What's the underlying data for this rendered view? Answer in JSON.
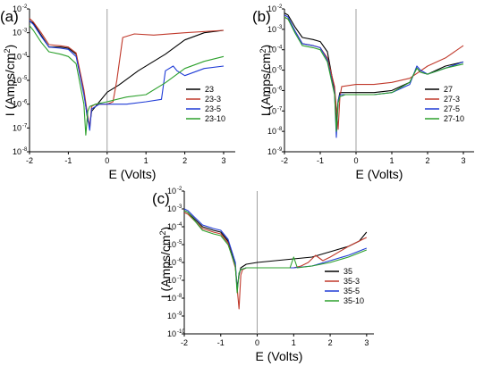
{
  "chart_data": [
    {
      "type": "line",
      "panel_label": "(a)",
      "xlabel": "E (Volts)",
      "ylabel": "I (Amps/cm²)",
      "ylabel_main": "I (Amps/cm",
      "ylabel_sup": "2",
      "ylabel_close": ")",
      "log_y": true,
      "xlim": [
        -2,
        3.3
      ],
      "ylim_exp": [
        -8,
        -2
      ],
      "x_ticks": [
        "-2",
        "-1",
        "0",
        "1",
        "2",
        "3"
      ],
      "y_tick_exps": [
        "-8",
        "-7",
        "-6",
        "-5",
        "-4",
        "-3",
        "-2"
      ],
      "y_tick_base": "10",
      "series": [
        {
          "name": "23",
          "color": "#000000",
          "x": [
            -2,
            -1.9,
            -1.7,
            -1.5,
            -1.2,
            -1.0,
            -0.8,
            -0.6,
            -0.5,
            -0.45,
            -0.4,
            -0.3,
            -0.2,
            0,
            0.3,
            0.8,
            1.5,
            2.0,
            2.5,
            3.0
          ],
          "y": [
            -2.5,
            -2.6,
            -3.1,
            -3.6,
            -3.6,
            -3.65,
            -3.9,
            -5.5,
            -6.7,
            -6.9,
            -6.3,
            -6.1,
            -5.9,
            -5.5,
            -5.2,
            -4.6,
            -3.9,
            -3.3,
            -3.0,
            -2.9
          ]
        },
        {
          "name": "23-3",
          "color": "#c0392b",
          "x": [
            -2,
            -1.9,
            -1.7,
            -1.5,
            -1.2,
            -1.0,
            -0.8,
            -0.6,
            -0.5,
            -0.45,
            -0.4,
            -0.3,
            -0.2,
            0,
            0.15,
            0.25,
            0.4,
            0.7,
            1.2,
            2.0,
            3.0
          ],
          "y": [
            -2.4,
            -2.55,
            -3.0,
            -3.5,
            -3.55,
            -3.6,
            -3.85,
            -5.4,
            -6.5,
            -7.0,
            -6.1,
            -6.0,
            -6.0,
            -6.0,
            -5.9,
            -5.0,
            -3.2,
            -3.05,
            -3.1,
            -3.0,
            -2.9
          ]
        },
        {
          "name": "23-5",
          "color": "#1f3bd6",
          "x": [
            -2,
            -1.9,
            -1.7,
            -1.5,
            -1.2,
            -1.0,
            -0.8,
            -0.6,
            -0.5,
            -0.45,
            -0.4,
            -0.3,
            -0.2,
            0,
            0.5,
            1.0,
            1.4,
            1.5,
            1.7,
            1.8,
            2.0,
            2.5,
            3.0
          ],
          "y": [
            -2.5,
            -2.65,
            -3.15,
            -3.6,
            -3.65,
            -3.7,
            -4.0,
            -5.6,
            -6.6,
            -7.1,
            -6.2,
            -6.1,
            -6.0,
            -6.0,
            -6.0,
            -5.9,
            -5.8,
            -4.6,
            -4.4,
            -4.6,
            -4.8,
            -4.5,
            -4.4
          ]
        },
        {
          "name": "23-10",
          "color": "#2ca02c",
          "x": [
            -2,
            -1.9,
            -1.7,
            -1.5,
            -1.2,
            -1.0,
            -0.8,
            -0.6,
            -0.55,
            -0.5,
            -0.45,
            -0.3,
            0,
            0.5,
            1.0,
            1.5,
            2.0,
            2.5,
            3.0
          ],
          "y": [
            -2.7,
            -2.9,
            -3.4,
            -3.8,
            -3.9,
            -4.0,
            -4.3,
            -6.0,
            -7.3,
            -6.3,
            -6.1,
            -6.0,
            -5.9,
            -5.7,
            -5.6,
            -5.1,
            -4.5,
            -4.2,
            -4.0
          ]
        }
      ]
    },
    {
      "type": "line",
      "panel_label": "(b)",
      "xlabel": "E (Volts)",
      "ylabel": "I (Amps/cm²)",
      "ylabel_main": "I (Amps/cm",
      "ylabel_sup": "2",
      "ylabel_close": ")",
      "log_y": true,
      "xlim": [
        -2,
        3.3
      ],
      "ylim_exp": [
        -9,
        -2
      ],
      "x_ticks": [
        "-2",
        "-1",
        "0",
        "1",
        "2",
        "3"
      ],
      "y_tick_exps": [
        "-9",
        "-8",
        "-7",
        "-6",
        "-5",
        "-4",
        "-3",
        "-2"
      ],
      "y_tick_base": "10",
      "series": [
        {
          "name": "27",
          "color": "#000000",
          "x": [
            -2,
            -1.9,
            -1.7,
            -1.5,
            -1.2,
            -1.0,
            -0.8,
            -0.6,
            -0.55,
            -0.5,
            -0.45,
            -0.3,
            0,
            0.5,
            1.0,
            1.5,
            1.7,
            1.8,
            2.0,
            2.5,
            3.0
          ],
          "y": [
            -2.2,
            -2.3,
            -2.9,
            -3.4,
            -3.5,
            -3.6,
            -4.1,
            -6.0,
            -7.6,
            -6.5,
            -6.1,
            -6.1,
            -6.1,
            -6.1,
            -6.0,
            -5.6,
            -4.9,
            -5.1,
            -5.2,
            -4.8,
            -4.6
          ]
        },
        {
          "name": "27-3",
          "color": "#c0392b",
          "x": [
            -2,
            -1.9,
            -1.7,
            -1.5,
            -1.2,
            -1.0,
            -0.8,
            -0.6,
            -0.5,
            -0.45,
            -0.4,
            0,
            0.5,
            1.0,
            1.5,
            2.0,
            2.5,
            3.0
          ],
          "y": [
            -2.4,
            -2.5,
            -3.1,
            -3.7,
            -3.8,
            -3.9,
            -4.4,
            -5.8,
            -7.9,
            -6.3,
            -5.8,
            -5.7,
            -5.7,
            -5.6,
            -5.4,
            -4.8,
            -4.4,
            -3.8
          ]
        },
        {
          "name": "27-5",
          "color": "#1f3bd6",
          "x": [
            -2,
            -1.9,
            -1.7,
            -1.5,
            -1.2,
            -1.0,
            -0.8,
            -0.6,
            -0.55,
            -0.5,
            -0.45,
            -0.3,
            0,
            0.5,
            1.0,
            1.5,
            1.7,
            1.8,
            2.0,
            2.5,
            3.0
          ],
          "y": [
            -2.3,
            -2.4,
            -3.1,
            -3.7,
            -3.8,
            -3.9,
            -4.5,
            -6.1,
            -8.3,
            -6.5,
            -6.2,
            -6.2,
            -6.2,
            -6.2,
            -6.1,
            -5.7,
            -4.8,
            -5.0,
            -5.2,
            -4.9,
            -4.6
          ]
        },
        {
          "name": "27-10",
          "color": "#2ca02c",
          "x": [
            -2,
            -1.9,
            -1.7,
            -1.5,
            -1.2,
            -1.0,
            -0.8,
            -0.6,
            -0.55,
            -0.5,
            -0.45,
            -0.3,
            0,
            0.5,
            1.0,
            1.5,
            1.7,
            1.8,
            2.0,
            2.5,
            3.0
          ],
          "y": [
            -2.4,
            -2.5,
            -3.2,
            -3.8,
            -3.9,
            -4.0,
            -4.6,
            -6.2,
            -8.0,
            -6.6,
            -6.3,
            -6.2,
            -6.2,
            -6.2,
            -6.1,
            -5.6,
            -4.9,
            -5.1,
            -5.2,
            -4.9,
            -4.7
          ]
        }
      ]
    },
    {
      "type": "line",
      "panel_label": "(c)",
      "xlabel": "E (Volts)",
      "ylabel": "I (Amps/cm²)",
      "ylabel_main": "I (Amps/cm",
      "ylabel_sup": "2",
      "ylabel_close": ")",
      "log_y": true,
      "xlim": [
        -2,
        3.2
      ],
      "ylim_exp": [
        -10,
        -2
      ],
      "x_ticks": [
        "-2",
        "-1",
        "0",
        "1",
        "2",
        "3"
      ],
      "y_tick_exps": [
        "-10",
        "-9",
        "-8",
        "-7",
        "-6",
        "-5",
        "-4",
        "-3",
        "-2"
      ],
      "y_tick_base": "10",
      "series": [
        {
          "name": "35",
          "color": "#000000",
          "x": [
            -2,
            -1.9,
            -1.7,
            -1.5,
            -1.2,
            -1.0,
            -0.8,
            -0.6,
            -0.55,
            -0.5,
            -0.45,
            -0.3,
            0,
            0.5,
            1.0,
            1.5,
            2.0,
            2.5,
            2.8,
            3.0
          ],
          "y": [
            -3.1,
            -3.2,
            -3.6,
            -4.0,
            -4.2,
            -4.3,
            -4.8,
            -6.2,
            -7.4,
            -6.7,
            -6.3,
            -6.1,
            -6.0,
            -5.9,
            -5.8,
            -5.7,
            -5.4,
            -5.1,
            -4.8,
            -4.3
          ]
        },
        {
          "name": "35-3",
          "color": "#c0392b",
          "x": [
            -2,
            -1.9,
            -1.7,
            -1.5,
            -1.2,
            -1.0,
            -0.8,
            -0.6,
            -0.5,
            -0.45,
            -0.4,
            -0.3,
            0,
            0.5,
            1.0,
            1.2,
            1.4,
            1.6,
            1.8,
            2.0,
            2.5,
            3.0
          ],
          "y": [
            -3.2,
            -3.3,
            -3.7,
            -4.1,
            -4.3,
            -4.4,
            -4.9,
            -6.3,
            -8.6,
            -6.7,
            -6.4,
            -6.3,
            -6.3,
            -6.3,
            -6.3,
            -6.2,
            -6.0,
            -5.6,
            -5.9,
            -5.7,
            -5.1,
            -4.6
          ]
        },
        {
          "name": "35-5",
          "color": "#1f3bd6",
          "x": [
            -2,
            -1.9,
            -1.7,
            -1.5,
            -1.2,
            -1.0,
            -0.8,
            -0.6,
            -0.55,
            -0.5,
            -0.45,
            -0.3,
            0,
            0.5,
            1.0,
            1.5,
            2.0,
            2.5,
            3.0
          ],
          "y": [
            -3.0,
            -3.1,
            -3.5,
            -3.9,
            -4.1,
            -4.2,
            -4.7,
            -6.0,
            -7.6,
            -6.6,
            -6.4,
            -6.3,
            -6.3,
            -6.3,
            -6.3,
            -6.2,
            -5.9,
            -5.6,
            -5.2
          ]
        },
        {
          "name": "35-10",
          "color": "#2ca02c",
          "x": [
            -2,
            -1.9,
            -1.7,
            -1.5,
            -1.2,
            -1.0,
            -0.8,
            -0.6,
            -0.55,
            -0.5,
            -0.45,
            -0.3,
            0,
            0.5,
            0.9,
            1.0,
            1.1,
            1.5,
            2.0,
            2.5,
            3.0
          ],
          "y": [
            -3.1,
            -3.2,
            -3.7,
            -4.2,
            -4.4,
            -4.5,
            -5.0,
            -6.2,
            -7.7,
            -6.6,
            -6.4,
            -6.3,
            -6.3,
            -6.3,
            -6.3,
            -5.7,
            -6.3,
            -6.2,
            -6.0,
            -5.7,
            -5.3
          ]
        }
      ]
    }
  ]
}
